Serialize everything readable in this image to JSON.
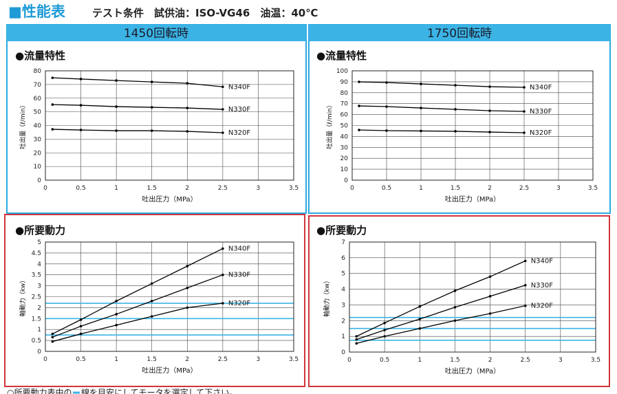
{
  "header": {
    "title": "■性能表",
    "conditions": "テスト条件　試供油：ISO-VG46　油温：40℃"
  },
  "panels": [
    "1450回転時",
    "1750回転時"
  ],
  "footer": {
    "before": "○所要動力表中の",
    "after": "線を目安にしてモータを選定して下さい。"
  },
  "chart_data": [
    {
      "type": "line",
      "title": "●流量特性",
      "x_label": "吐出圧力（MPa）",
      "y_label": "吐出量（ℓ/min）",
      "x": [
        0.1,
        0.5,
        1,
        1.5,
        2,
        2.5
      ],
      "xlim": [
        0,
        3.5
      ],
      "xticks": [
        0,
        0.5,
        1,
        1.5,
        2,
        2.5,
        3,
        3.5
      ],
      "ylim": [
        0,
        80
      ],
      "yticks": [
        0,
        10,
        20,
        30,
        40,
        50,
        60,
        70,
        80
      ],
      "grid": true,
      "series": [
        {
          "name": "N340F",
          "color": "#000000",
          "values": [
            74.9,
            74,
            72.9,
            71.9,
            70.9,
            68.3
          ]
        },
        {
          "name": "N330F",
          "color": "#000000",
          "values": [
            55.3,
            54.8,
            53.8,
            53.3,
            52.8,
            51.8
          ]
        },
        {
          "name": "N320F",
          "color": "#000000",
          "values": [
            37.2,
            36.7,
            36.2,
            36.2,
            35.7,
            34.7
          ]
        }
      ]
    },
    {
      "type": "line",
      "title": "●流量特性",
      "x_label": "吐出圧力（MPa）",
      "y_label": "吐出量（ℓ/min）",
      "x": [
        0.1,
        0.5,
        1,
        1.5,
        2,
        2.5
      ],
      "xlim": [
        0,
        3.5
      ],
      "xticks": [
        0,
        0.5,
        1,
        1.5,
        2,
        2.5,
        3,
        3.5
      ],
      "ylim": [
        0,
        100
      ],
      "yticks": [
        0,
        10,
        20,
        30,
        40,
        50,
        60,
        70,
        80,
        90,
        100
      ],
      "grid": true,
      "series": [
        {
          "name": "N340F",
          "color": "#000000",
          "values": [
            89.9,
            89.3,
            88,
            86.8,
            85.5,
            84.9
          ]
        },
        {
          "name": "N330F",
          "color": "#000000",
          "values": [
            67.9,
            67.3,
            66,
            64.8,
            63.5,
            62.9
          ]
        },
        {
          "name": "N320F",
          "color": "#000000",
          "values": [
            45.9,
            45.3,
            45,
            44.7,
            44,
            43.4
          ]
        }
      ]
    },
    {
      "type": "line",
      "title": "●所要動力",
      "x_label": "吐出圧力（MPa）",
      "y_label": "軸動力（kw）",
      "x": [
        0.1,
        0.5,
        1,
        1.5,
        2,
        2.5
      ],
      "xlim": [
        0,
        3.5
      ],
      "xticks": [
        0,
        0.5,
        1,
        1.5,
        2,
        2.5,
        3,
        3.5
      ],
      "ylim": [
        0,
        5
      ],
      "yticks": [
        0,
        0.5,
        1,
        1.5,
        2,
        2.5,
        3,
        3.5,
        4,
        4.5,
        5
      ],
      "grid": true,
      "reference_lines": [
        2.2,
        1.5,
        0.75
      ],
      "reference_color": "#3bb4e5",
      "series": [
        {
          "name": "N340F",
          "color": "#000000",
          "values": [
            0.8,
            1.45,
            2.3,
            3.1,
            3.9,
            4.7
          ]
        },
        {
          "name": "N330F",
          "color": "#000000",
          "values": [
            0.65,
            1.15,
            1.7,
            2.3,
            2.9,
            3.5
          ]
        },
        {
          "name": "N320F",
          "color": "#000000",
          "values": [
            0.45,
            0.8,
            1.2,
            1.6,
            2,
            2.2
          ]
        }
      ]
    },
    {
      "type": "line",
      "title": "●所要動力",
      "x_label": "吐出圧力（MPa）",
      "y_label": "軸動力（kw）",
      "x": [
        0.1,
        0.5,
        1,
        1.5,
        2,
        2.5
      ],
      "xlim": [
        0,
        3.5
      ],
      "xticks": [
        0,
        0.5,
        1,
        1.5,
        2,
        2.5,
        3,
        3.5
      ],
      "ylim": [
        0,
        7
      ],
      "yticks": [
        0,
        1,
        2,
        3,
        4,
        5,
        6,
        7
      ],
      "grid": true,
      "reference_lines": [
        2.2,
        1.5,
        0.75
      ],
      "reference_color": "#3bb4e5",
      "series": [
        {
          "name": "N340F",
          "color": "#000000",
          "values": [
            1,
            1.85,
            2.9,
            3.9,
            4.8,
            5.8
          ]
        },
        {
          "name": "N330F",
          "color": "#000000",
          "values": [
            0.8,
            1.4,
            2.1,
            2.85,
            3.55,
            4.25
          ]
        },
        {
          "name": "N320F",
          "color": "#000000",
          "values": [
            0.55,
            1,
            1.5,
            2,
            2.45,
            2.95
          ]
        }
      ]
    }
  ]
}
